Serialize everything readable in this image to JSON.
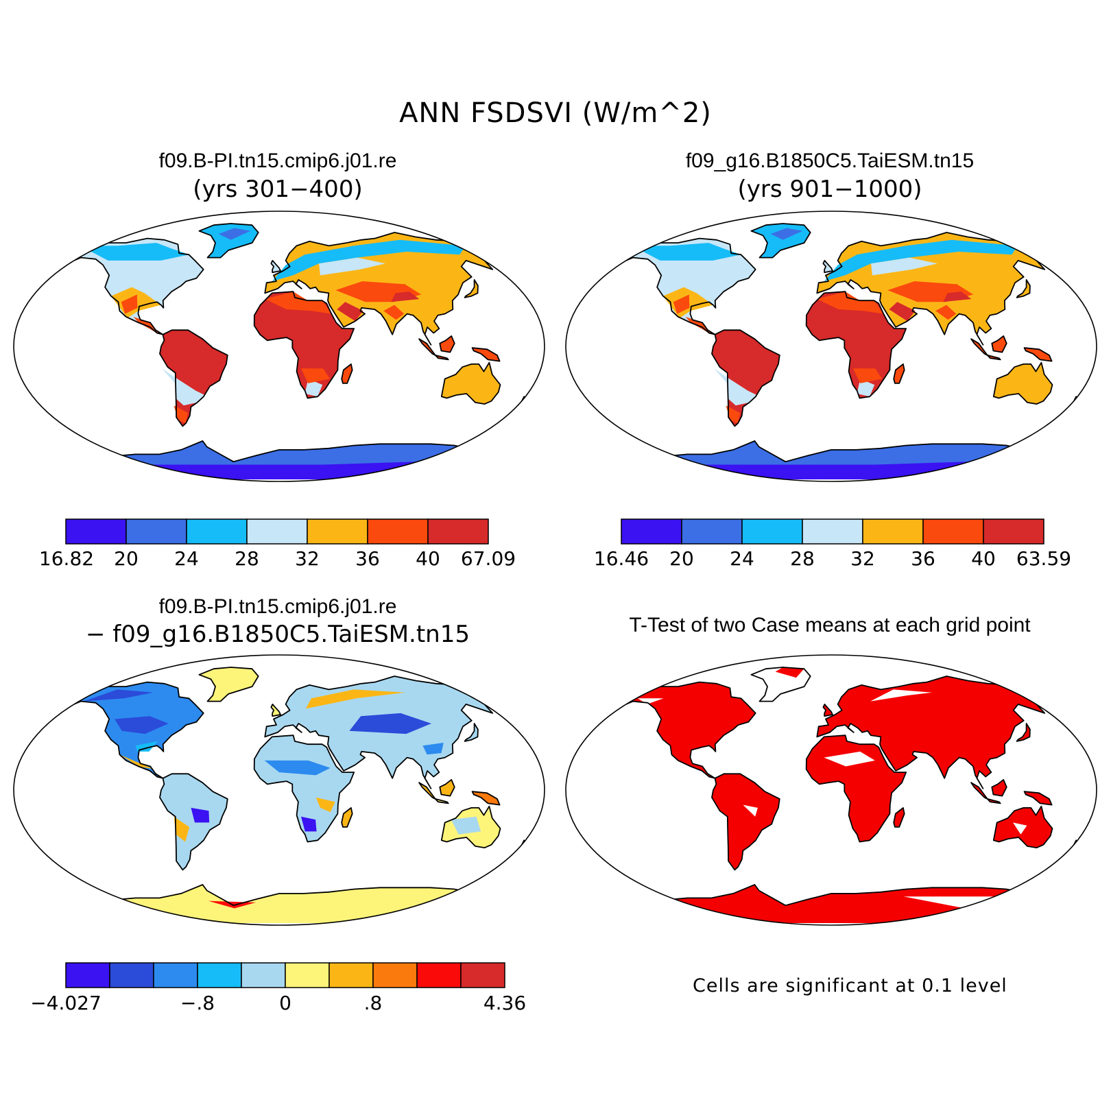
{
  "title": "ANN FSDSVI (W/m^2)",
  "panels": [
    {
      "id": "case1",
      "title": "f09.B-PI.tn15.cmip6.j01.re",
      "subtitle": "(yrs 301−400)"
    },
    {
      "id": "case2",
      "title": "f09_g16.B1850C5.TaiESM.tn15",
      "subtitle": "(yrs 901−1000)"
    },
    {
      "id": "diff",
      "title": "f09.B-PI.tn15.cmip6.j01.re",
      "subtitle": "− f09_g16.B1850C5.TaiESM.tn15"
    },
    {
      "id": "ttest",
      "title": "T-Test of two Case means at each grid point",
      "subtitle": ""
    }
  ],
  "colorbars": {
    "case1": {
      "colors": [
        "#3b12f2",
        "#3c6fe6",
        "#16bcf7",
        "#c7e6f7",
        "#fbb616",
        "#fb4a0d",
        "#d72a2a"
      ],
      "labels": [
        "16.82",
        "20",
        "24",
        "28",
        "32",
        "36",
        "40",
        "67.09"
      ]
    },
    "case2": {
      "colors": [
        "#3b12f2",
        "#3c6fe6",
        "#16bcf7",
        "#c7e6f7",
        "#fbb616",
        "#fb4a0d",
        "#d72a2a"
      ],
      "labels": [
        "16.46",
        "20",
        "24",
        "28",
        "32",
        "36",
        "40",
        "63.59"
      ]
    },
    "diff": {
      "colors": [
        "#3b12f2",
        "#2b4bd9",
        "#2d8bef",
        "#16bcf7",
        "#a8d8f0",
        "#fdf47a",
        "#fbb616",
        "#fb7a0d",
        "#fb0a0a",
        "#d72a2a"
      ],
      "labels": [
        "−4.027",
        "−.8",
        "0",
        ".8",
        "4.36"
      ]
    }
  },
  "ttest_note": "Cells are significant at 0.1 level",
  "ttest_color": "#f50000"
}
